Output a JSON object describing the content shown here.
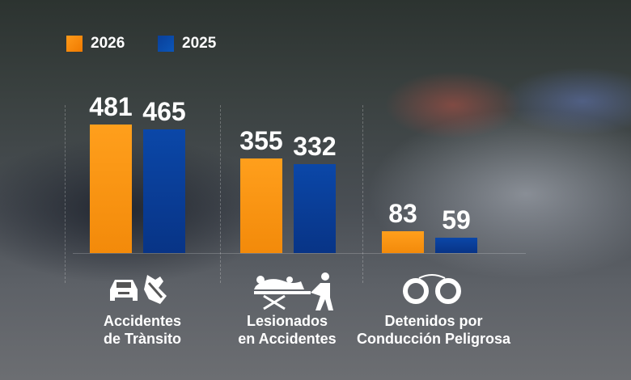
{
  "chart_data": {
    "type": "bar",
    "categories": [
      "Accidentes de Trànsito",
      "Lesionados en Accidentes",
      "Detenidos por Conducción Peligrosa"
    ],
    "category_lines": [
      [
        "Accidentes",
        "de Trànsito"
      ],
      [
        "Lesionados",
        "en Accidentes"
      ],
      [
        "Detenidos por",
        "Conducción Peligrosa"
      ]
    ],
    "series": [
      {
        "name": "2026",
        "values": [
          481,
          355,
          83
        ],
        "color": "#f7920f"
      },
      {
        "name": "2025",
        "values": [
          465,
          332,
          59
        ],
        "color": "#0a3b8c"
      }
    ],
    "ylim": [
      0,
      500
    ],
    "legend": "top-left",
    "icons": [
      "car-crash-icon",
      "stretcher-patient-icon",
      "handcuffs-icon"
    ]
  }
}
